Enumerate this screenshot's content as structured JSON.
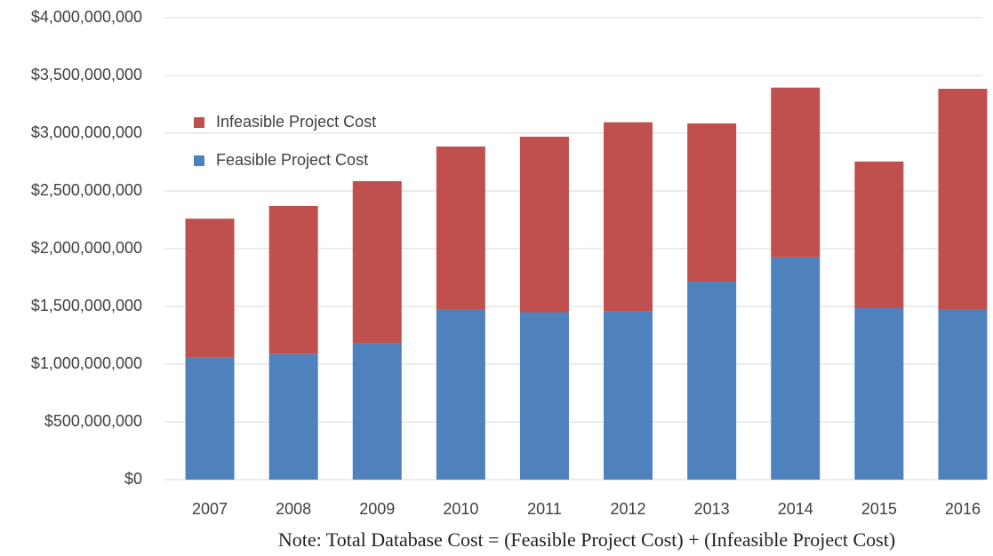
{
  "chart_data": {
    "type": "stacked_bar",
    "annotation": "Note: Total Database Cost = (Feasible Project Cost) + (Infeasible Project Cost)",
    "categories": [
      "2007",
      "2008",
      "2009",
      "2010",
      "2011",
      "2012",
      "2013",
      "2014",
      "2015",
      "2016"
    ],
    "series": [
      {
        "name": "Feasible Project Cost",
        "color": "#4f81bd",
        "values": [
          1055000000,
          1090000000,
          1180000000,
          1470000000,
          1450000000,
          1455000000,
          1715000000,
          1925000000,
          1485000000,
          1470000000
        ]
      },
      {
        "name": "Infeasible Project Cost",
        "color": "#c0504d",
        "values": [
          1205000000,
          1280000000,
          1405000000,
          1415000000,
          1520000000,
          1640000000,
          1370000000,
          1470000000,
          1270000000,
          1915000000
        ]
      }
    ],
    "ylim": [
      0,
      4000000000
    ],
    "yticks": [
      {
        "value": 0,
        "label": "$0"
      },
      {
        "value": 500000000,
        "label": "$500,000,000"
      },
      {
        "value": 1000000000,
        "label": "$1,000,000,000"
      },
      {
        "value": 1500000000,
        "label": "$1,500,000,000"
      },
      {
        "value": 2000000000,
        "label": "$2,000,000,000"
      },
      {
        "value": 2500000000,
        "label": "$2,500,000,000"
      },
      {
        "value": 3000000000,
        "label": "$3,000,000,000"
      },
      {
        "value": 3500000000,
        "label": "$3,500,000,000"
      },
      {
        "value": 4000000000,
        "label": "$4,000,000,000"
      }
    ],
    "grid": true,
    "legend": "upper left"
  }
}
